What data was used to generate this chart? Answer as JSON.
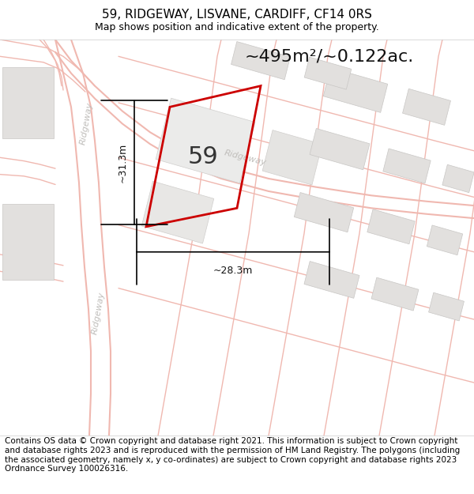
{
  "title": "59, RIDGEWAY, LISVANE, CARDIFF, CF14 0RS",
  "subtitle": "Map shows position and indicative extent of the property.",
  "area_label": "~495m²/~0.122ac.",
  "property_number": "59",
  "dim_width": "~28.3m",
  "dim_height": "~31.3m",
  "footer": "Contains OS data © Crown copyright and database right 2021. This information is subject to Crown copyright and database rights 2023 and is reproduced with the permission of HM Land Registry. The polygons (including the associated geometry, namely x, y co-ordinates) are subject to Crown copyright and database rights 2023 Ordnance Survey 100026316.",
  "bg_color": "#f7f6f4",
  "road_color": "#f0b8b0",
  "road_lw": 0.8,
  "building_color": "#e2e0de",
  "building_edge_color": "#c8c6c4",
  "property_outline_color": "#cc0000",
  "title_fontsize": 11,
  "subtitle_fontsize": 9,
  "footer_fontsize": 7.5,
  "area_fontsize": 16,
  "road_label_color": "#c0bebb",
  "road_label_fontsize": 8
}
